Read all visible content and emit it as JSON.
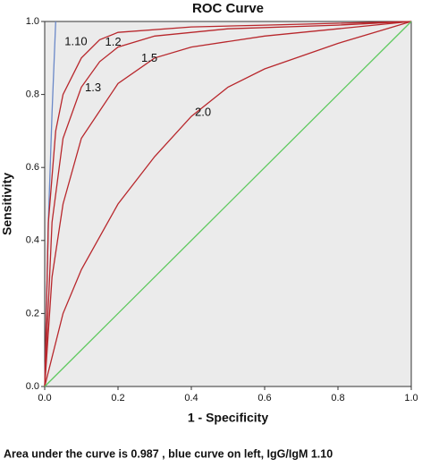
{
  "chart_data": {
    "type": "line",
    "title": "ROC Curve",
    "x_label": "1 - Specificity",
    "y_label": "Sensitivity",
    "caption": "Area under the curve is 0.987 , blue curve on left, IgG/IgM 1.10",
    "xlim": [
      0,
      1
    ],
    "ylim": [
      0,
      1
    ],
    "xticks": [
      {
        "value": 0,
        "label": "0.0"
      },
      0.2,
      0.4,
      0.6,
      0.8,
      {
        "value": 1,
        "label": "1.0"
      }
    ],
    "yticks": [
      {
        "value": 0,
        "label": "0.0"
      },
      0.2,
      0.4,
      0.6,
      0.8,
      {
        "value": 1,
        "label": "1.0"
      }
    ],
    "series": [
      {
        "name": "1.10",
        "color": "#6a88c8",
        "x": [
          0,
          0.01,
          0.02,
          0.03
        ],
        "values": [
          0,
          0.45,
          0.75,
          1.0
        ]
      },
      {
        "name": "1.2",
        "color": "#b8272c",
        "x": [
          0,
          0.01,
          0.03,
          0.05,
          0.1,
          0.15,
          0.2,
          0.4,
          0.6,
          0.8,
          1
        ],
        "values": [
          0,
          0.45,
          0.7,
          0.8,
          0.9,
          0.95,
          0.97,
          0.985,
          0.99,
          0.995,
          1
        ]
      },
      {
        "name": "1.3",
        "color": "#b8272c",
        "x": [
          0,
          0.02,
          0.05,
          0.1,
          0.15,
          0.2,
          0.3,
          0.5,
          0.8,
          1
        ],
        "values": [
          0,
          0.45,
          0.68,
          0.82,
          0.89,
          0.93,
          0.96,
          0.98,
          0.99,
          1
        ]
      },
      {
        "name": "1.5",
        "color": "#b8272c",
        "x": [
          0,
          0.02,
          0.05,
          0.1,
          0.2,
          0.3,
          0.4,
          0.6,
          0.8,
          1
        ],
        "values": [
          0,
          0.3,
          0.5,
          0.68,
          0.83,
          0.9,
          0.93,
          0.96,
          0.98,
          1
        ]
      },
      {
        "name": "2.0",
        "color": "#b8272c",
        "x": [
          0,
          0.05,
          0.1,
          0.2,
          0.3,
          0.4,
          0.5,
          0.6,
          0.8,
          1
        ],
        "values": [
          0,
          0.2,
          0.32,
          0.5,
          0.63,
          0.74,
          0.82,
          0.87,
          0.94,
          1
        ]
      },
      {
        "color": "#5ec95e",
        "x": [
          0,
          1
        ],
        "values": [
          0,
          1
        ]
      }
    ]
  }
}
